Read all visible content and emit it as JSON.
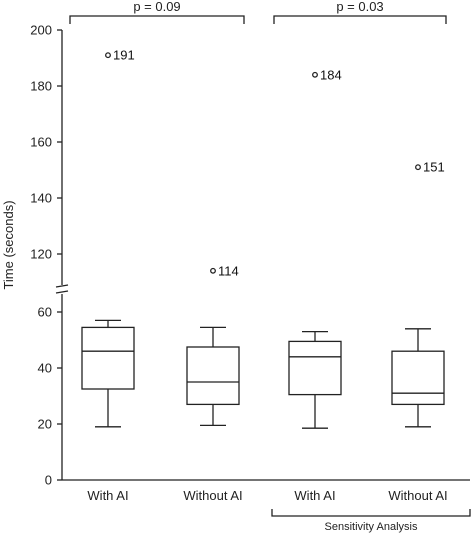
{
  "chart_data": {
    "type": "box",
    "ylabel": "Time (seconds)",
    "y_ticks_lower": [
      0,
      20,
      40,
      60
    ],
    "y_ticks_upper": [
      120,
      140,
      160,
      180,
      200
    ],
    "axis_break": "between 60 and 110",
    "categories": [
      "With AI",
      "Without AI",
      "With AI",
      "Without AI"
    ],
    "boxes": [
      {
        "whisker_low": 19,
        "q1": 32.5,
        "median": 46,
        "q3": 54.5,
        "whisker_high": 57,
        "outlier": 191,
        "outlier_label": "191"
      },
      {
        "whisker_low": 19.5,
        "q1": 27,
        "median": 35,
        "q3": 47.5,
        "whisker_high": 54.5,
        "outlier": 114,
        "outlier_label": "114"
      },
      {
        "whisker_low": 18.5,
        "q1": 30.5,
        "median": 44,
        "q3": 49.5,
        "whisker_high": 53,
        "outlier": 184,
        "outlier_label": "184"
      },
      {
        "whisker_low": 19,
        "q1": 27,
        "median": 31,
        "q3": 46,
        "whisker_high": 54,
        "outlier": 151,
        "outlier_label": "151"
      }
    ],
    "comparisons": [
      {
        "label": "p = 0.09",
        "from": 0,
        "to": 1
      },
      {
        "label": "p = 0.03",
        "from": 2,
        "to": 3
      }
    ],
    "group_label": {
      "text": "Sensitivity Analysis",
      "from": 2,
      "to": 3
    }
  }
}
